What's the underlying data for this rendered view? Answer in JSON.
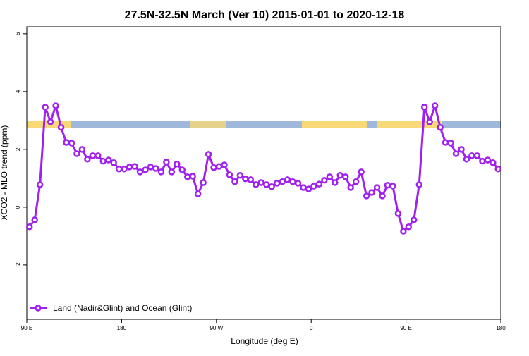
{
  "chart_data": {
    "type": "line",
    "title": "27.5N-32.5N March (Ver 10)   2015-01-01 to 2020-12-18",
    "x_label": "Longitude (deg E)",
    "y_label": "XCO2 - MLO trend (ppm)",
    "xlim": [
      90,
      540
    ],
    "ylim": [
      -3.88,
      6.24
    ],
    "xticks": [
      {
        "value": 90,
        "label": "90 E"
      },
      180,
      {
        "value": 270,
        "label": "90 W"
      },
      {
        "value": 360,
        "label": "0"
      },
      {
        "value": 450,
        "label": "90 E"
      },
      {
        "value": 540,
        "label": "180"
      }
    ],
    "yticks": [
      -2,
      0,
      2,
      4,
      6
    ],
    "legend": "bottom-left",
    "x": [
      92.5,
      97.5,
      102.5,
      107.5,
      112.5,
      117.5,
      122.5,
      127.5,
      132.5,
      137.5,
      142.5,
      147.5,
      152.5,
      157.5,
      162.5,
      167.5,
      172.5,
      177.5,
      182.5,
      187.5,
      192.5,
      197.5,
      202.5,
      207.5,
      212.5,
      217.5,
      222.5,
      227.5,
      232.5,
      237.5,
      242.5,
      247.5,
      252.5,
      257.5,
      262.5,
      267.5,
      272.5,
      277.5,
      282.5,
      287.5,
      292.5,
      297.5,
      302.5,
      307.5,
      312.5,
      317.5,
      322.5,
      327.5,
      332.5,
      337.5,
      342.5,
      347.5,
      352.5,
      357.5,
      362.5,
      367.5,
      372.5,
      377.5,
      382.5,
      387.5,
      392.5,
      397.5,
      402.5,
      407.5,
      412.5,
      417.5,
      422.5,
      427.5,
      432.5,
      437.5,
      442.5,
      447.5,
      452.5,
      457.5,
      462.5,
      467.5,
      472.5,
      477.5,
      482.5,
      487.5,
      492.5,
      497.5,
      502.5,
      507.5,
      512.5,
      517.5,
      522.5,
      527.5,
      532.5,
      537.5
    ],
    "series": [
      {
        "name": "Land (Nadir&Glint) and Ocean (Glint)",
        "color": "#a020f0",
        "values": [
          -0.68,
          -0.44,
          0.78,
          3.46,
          2.95,
          3.51,
          2.76,
          2.24,
          2.22,
          1.85,
          2.0,
          1.66,
          1.78,
          1.78,
          1.59,
          1.63,
          1.54,
          1.32,
          1.32,
          1.39,
          1.41,
          1.22,
          1.29,
          1.39,
          1.34,
          1.22,
          1.56,
          1.22,
          1.49,
          1.29,
          1.05,
          1.07,
          0.46,
          0.85,
          1.83,
          1.37,
          1.41,
          1.46,
          1.12,
          0.88,
          1.1,
          0.98,
          0.95,
          0.78,
          0.85,
          0.78,
          0.71,
          0.83,
          0.88,
          0.95,
          0.88,
          0.83,
          0.68,
          0.63,
          0.73,
          0.8,
          0.93,
          1.05,
          0.85,
          1.1,
          1.05,
          0.68,
          0.88,
          1.22,
          0.39,
          0.51,
          0.68,
          0.39,
          0.76,
          0.73,
          -0.22,
          -0.83,
          -0.68,
          -0.44,
          0.78,
          3.46,
          2.95,
          3.51,
          2.76,
          2.24,
          2.22,
          1.85,
          2.0,
          1.66,
          1.78,
          1.78,
          1.59,
          1.63,
          1.54,
          1.32
        ]
      }
    ]
  }
}
